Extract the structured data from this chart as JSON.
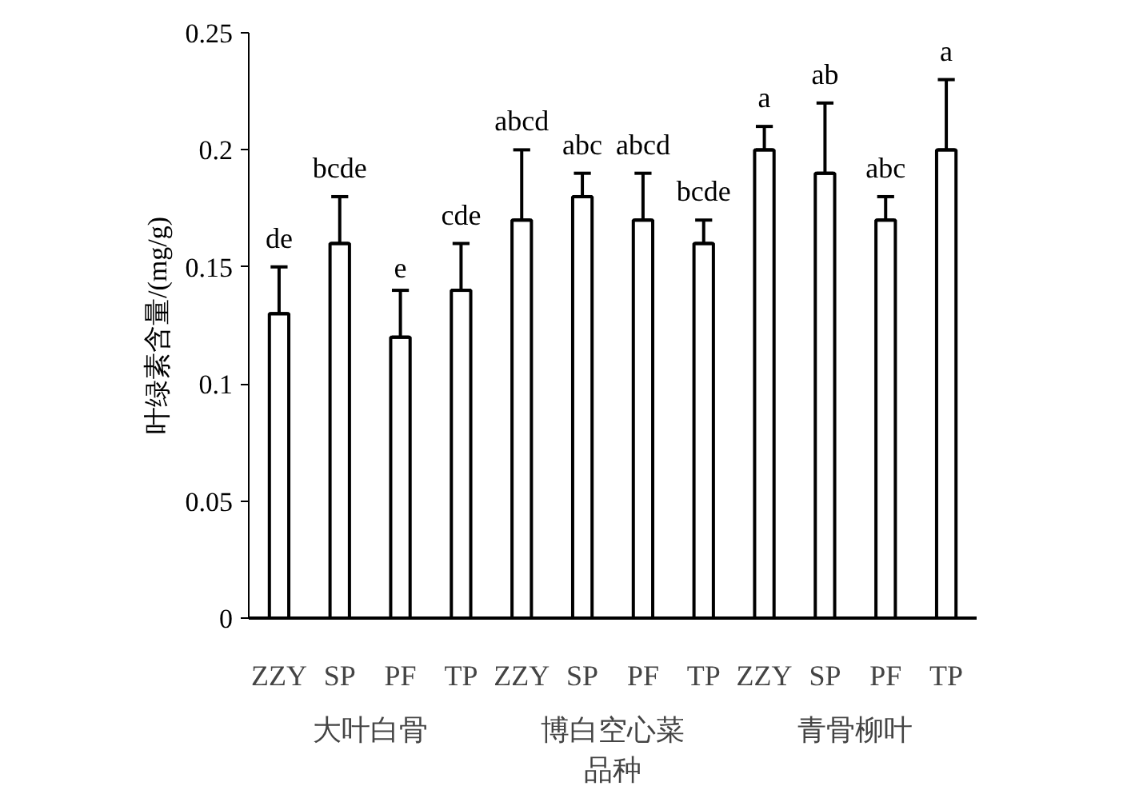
{
  "chart_data": {
    "type": "bar",
    "categories": [
      "ZZY",
      "SP",
      "PF",
      "TP",
      "ZZY",
      "SP",
      "PF",
      "TP",
      "ZZY",
      "SP",
      "PF",
      "TP"
    ],
    "values": [
      0.13,
      0.16,
      0.12,
      0.14,
      0.17,
      0.18,
      0.17,
      0.16,
      0.2,
      0.19,
      0.17,
      0.2
    ],
    "errors": [
      [
        0.13,
        0.15
      ],
      [
        0.16,
        0.18
      ],
      [
        0.12,
        0.14
      ],
      [
        0.14,
        0.16
      ],
      [
        0.17,
        0.2
      ],
      [
        0.18,
        0.19
      ],
      [
        0.17,
        0.19
      ],
      [
        0.16,
        0.17
      ],
      [
        0.2,
        0.21
      ],
      [
        0.19,
        0.22
      ],
      [
        0.17,
        0.18
      ],
      [
        0.2,
        0.23
      ]
    ],
    "value_labels": [
      "de",
      "bcde",
      "e",
      "cde",
      "abcd",
      "abc",
      "abcd",
      "bcde",
      "a",
      "ab",
      "abc",
      "a"
    ],
    "color": "#ffffff",
    "ylabel": "叶绿素含量/(mg/g)",
    "xlabel": "品种",
    "annotations": [
      "大叶白骨",
      "博白空心菜",
      "青骨柳叶"
    ],
    "ylim": [
      0,
      0.25
    ],
    "yticks": [
      0,
      0.05,
      0.1,
      0.15,
      0.2,
      0.25
    ],
    "grid": false
  }
}
